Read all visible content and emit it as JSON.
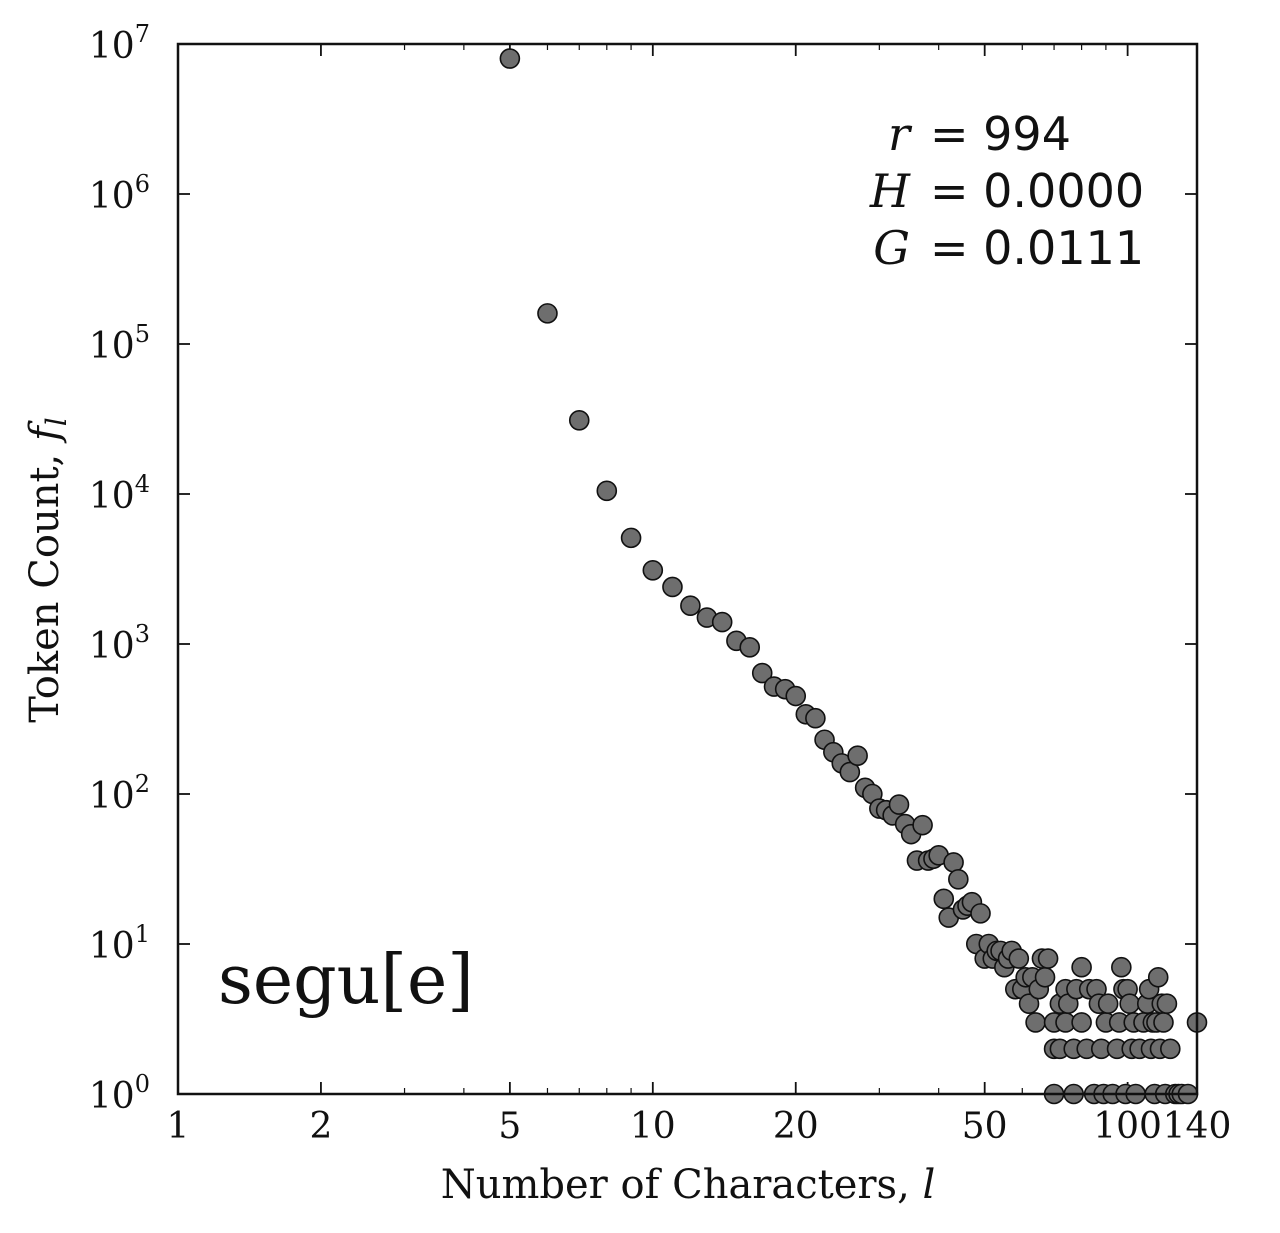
{
  "chart_data": {
    "type": "scatter",
    "xscale": "log",
    "yscale": "log",
    "xlim": [
      1,
      140
    ],
    "ylim": [
      1,
      10000000
    ],
    "xlabel_text": "Number of Characters, ",
    "xlabel_var": "l",
    "ylabel_text": "Token Count, ",
    "ylabel_var": "f",
    "ylabel_sub": "l",
    "x_ticks": [
      {
        "value": 1,
        "label": "1"
      },
      {
        "value": 2,
        "label": "2"
      },
      {
        "value": 5,
        "label": "5"
      },
      {
        "value": 10,
        "label": "10"
      },
      {
        "value": 20,
        "label": "20"
      },
      {
        "value": 50,
        "label": "50"
      },
      {
        "value": 100,
        "label": "100"
      },
      {
        "value": 140,
        "label": "140"
      }
    ],
    "y_ticks": [
      {
        "value": 1,
        "base": "10",
        "exp": "0"
      },
      {
        "value": 10,
        "base": "10",
        "exp": "1"
      },
      {
        "value": 100,
        "base": "10",
        "exp": "2"
      },
      {
        "value": 1000,
        "base": "10",
        "exp": "3"
      },
      {
        "value": 10000,
        "base": "10",
        "exp": "4"
      },
      {
        "value": 100000,
        "base": "10",
        "exp": "5"
      },
      {
        "value": 1000000,
        "base": "10",
        "exp": "6"
      },
      {
        "value": 10000000,
        "base": "10",
        "exp": "7"
      }
    ],
    "annotations": {
      "r_label": "r",
      "r_value": "= 994",
      "H_label": "H",
      "H_value": "= 0.0000",
      "G_label": "G",
      "G_value": "= 0.0111",
      "tag": "segu[e]"
    },
    "points": [
      [
        5,
        8000000
      ],
      [
        6,
        160000
      ],
      [
        7,
        31000
      ],
      [
        8,
        10500
      ],
      [
        9,
        5100
      ],
      [
        10,
        3100
      ],
      [
        11,
        2400
      ],
      [
        12,
        1800
      ],
      [
        13,
        1500
      ],
      [
        14,
        1400
      ],
      [
        15,
        1050
      ],
      [
        16,
        950
      ],
      [
        17,
        640
      ],
      [
        18,
        520
      ],
      [
        19,
        500
      ],
      [
        20,
        450
      ],
      [
        21,
        340
      ],
      [
        22,
        320
      ],
      [
        23,
        230
      ],
      [
        24,
        190
      ],
      [
        25,
        160
      ],
      [
        26,
        140
      ],
      [
        27,
        180
      ],
      [
        28,
        110
      ],
      [
        29,
        100
      ],
      [
        30,
        80
      ],
      [
        31,
        78
      ],
      [
        32,
        72
      ],
      [
        33,
        85
      ],
      [
        34,
        63
      ],
      [
        35,
        54
      ],
      [
        36,
        36
      ],
      [
        37,
        62
      ],
      [
        38,
        36
      ],
      [
        39,
        37
      ],
      [
        40,
        39
      ],
      [
        41,
        20
      ],
      [
        42,
        15
      ],
      [
        43,
        35
      ],
      [
        44,
        27
      ],
      [
        45,
        17
      ],
      [
        46,
        18
      ],
      [
        47,
        19
      ],
      [
        48,
        10
      ],
      [
        49,
        16
      ],
      [
        50,
        8
      ],
      [
        51,
        10
      ],
      [
        52,
        8
      ],
      [
        53,
        9
      ],
      [
        54,
        9
      ],
      [
        55,
        7
      ],
      [
        56,
        8
      ],
      [
        57,
        9
      ],
      [
        58,
        5
      ],
      [
        59,
        8
      ],
      [
        60,
        5
      ],
      [
        61,
        6
      ],
      [
        62,
        4
      ],
      [
        63,
        6
      ],
      [
        64,
        3
      ],
      [
        65,
        5
      ],
      [
        66,
        8
      ],
      [
        67,
        6
      ],
      [
        68,
        8
      ],
      [
        70,
        1
      ],
      [
        70,
        3
      ],
      [
        70,
        2
      ],
      [
        72,
        4
      ],
      [
        72,
        2
      ],
      [
        74,
        5
      ],
      [
        74,
        3
      ],
      [
        75,
        4
      ],
      [
        77,
        2
      ],
      [
        77,
        1
      ],
      [
        78,
        5
      ],
      [
        80,
        7
      ],
      [
        80,
        3
      ],
      [
        82,
        2
      ],
      [
        83,
        5
      ],
      [
        85,
        1
      ],
      [
        86,
        5
      ],
      [
        87,
        4
      ],
      [
        88,
        2
      ],
      [
        89,
        1
      ],
      [
        90,
        3
      ],
      [
        91,
        4
      ],
      [
        93,
        1
      ],
      [
        95,
        2
      ],
      [
        96,
        3
      ],
      [
        97,
        7
      ],
      [
        98,
        5
      ],
      [
        99,
        1
      ],
      [
        100,
        5
      ],
      [
        101,
        4
      ],
      [
        102,
        2
      ],
      [
        103,
        3
      ],
      [
        104,
        1
      ],
      [
        106,
        2
      ],
      [
        108,
        3
      ],
      [
        110,
        4
      ],
      [
        111,
        5
      ],
      [
        112,
        2
      ],
      [
        113,
        3
      ],
      [
        114,
        1
      ],
      [
        115,
        3
      ],
      [
        116,
        6
      ],
      [
        117,
        2
      ],
      [
        118,
        4
      ],
      [
        119,
        3
      ],
      [
        120,
        1
      ],
      [
        121,
        4
      ],
      [
        123,
        2
      ],
      [
        126,
        1
      ],
      [
        128,
        1
      ],
      [
        130,
        1
      ],
      [
        134,
        1
      ],
      [
        140,
        3
      ]
    ]
  }
}
